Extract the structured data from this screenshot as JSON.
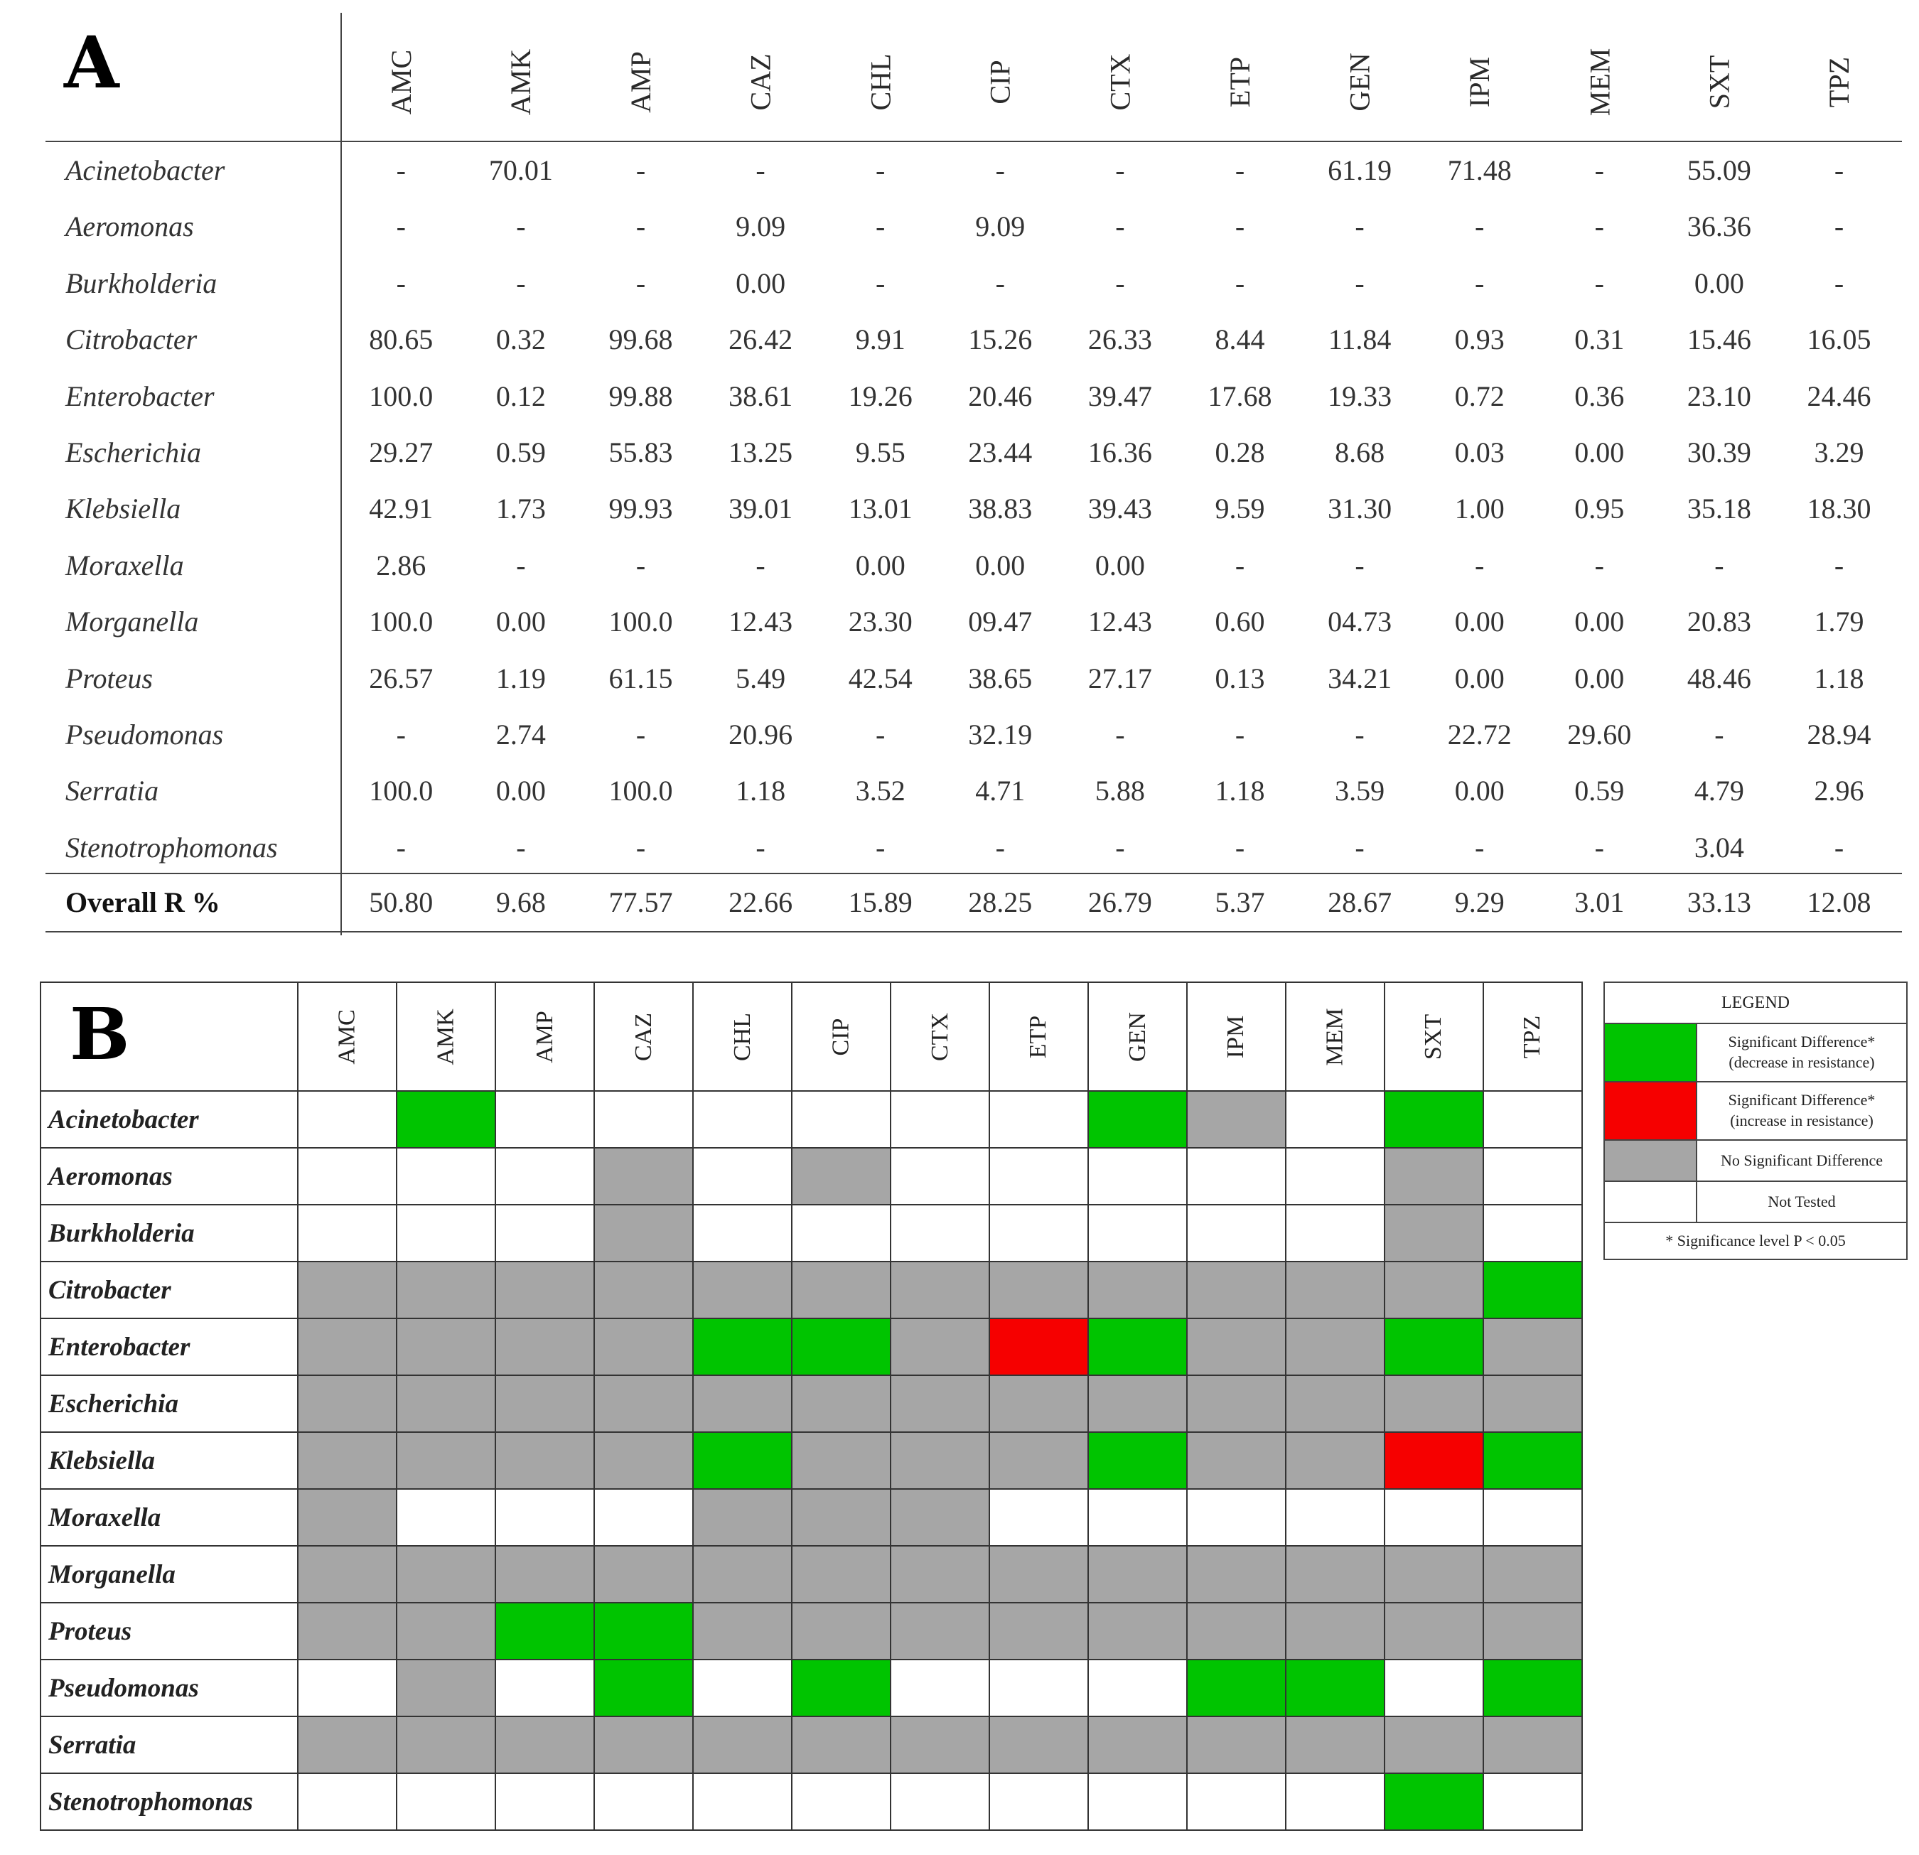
{
  "panel_a": {
    "label": "A",
    "columns": [
      "AMC",
      "AMK",
      "AMP",
      "CAZ",
      "CHL",
      "CIP",
      "CTX",
      "ETP",
      "GEN",
      "IPM",
      "MEM",
      "SXT",
      "TPZ"
    ],
    "rows": [
      {
        "organism": "Acinetobacter",
        "values": [
          "-",
          "70.01",
          "-",
          "-",
          "-",
          "-",
          "-",
          "-",
          "61.19",
          "71.48",
          "-",
          "55.09",
          "-"
        ]
      },
      {
        "organism": "Aeromonas",
        "values": [
          "-",
          "-",
          "-",
          "9.09",
          "-",
          "9.09",
          "-",
          "-",
          "-",
          "-",
          "-",
          "36.36",
          "-"
        ]
      },
      {
        "organism": "Burkholderia",
        "values": [
          "-",
          "-",
          "-",
          "0.00",
          "-",
          "-",
          "-",
          "-",
          "-",
          "-",
          "-",
          "0.00",
          "-"
        ]
      },
      {
        "organism": "Citrobacter",
        "values": [
          "80.65",
          "0.32",
          "99.68",
          "26.42",
          "9.91",
          "15.26",
          "26.33",
          "8.44",
          "11.84",
          "0.93",
          "0.31",
          "15.46",
          "16.05"
        ]
      },
      {
        "organism": "Enterobacter",
        "values": [
          "100.0",
          "0.12",
          "99.88",
          "38.61",
          "19.26",
          "20.46",
          "39.47",
          "17.68",
          "19.33",
          "0.72",
          "0.36",
          "23.10",
          "24.46"
        ]
      },
      {
        "organism": "Escherichia",
        "values": [
          "29.27",
          "0.59",
          "55.83",
          "13.25",
          "9.55",
          "23.44",
          "16.36",
          "0.28",
          "8.68",
          "0.03",
          "0.00",
          "30.39",
          "3.29"
        ]
      },
      {
        "organism": "Klebsiella",
        "values": [
          "42.91",
          "1.73",
          "99.93",
          "39.01",
          "13.01",
          "38.83",
          "39.43",
          "9.59",
          "31.30",
          "1.00",
          "0.95",
          "35.18",
          "18.30"
        ]
      },
      {
        "organism": "Moraxella",
        "values": [
          "2.86",
          "-",
          "-",
          "-",
          "0.00",
          "0.00",
          "0.00",
          "-",
          "-",
          "-",
          "-",
          "-",
          "-"
        ]
      },
      {
        "organism": "Morganella",
        "values": [
          "100.0",
          "0.00",
          "100.0",
          "12.43",
          "23.30",
          "09.47",
          "12.43",
          "0.60",
          "04.73",
          "0.00",
          "0.00",
          "20.83",
          "1.79"
        ]
      },
      {
        "organism": "Proteus",
        "values": [
          "26.57",
          "1.19",
          "61.15",
          "5.49",
          "42.54",
          "38.65",
          "27.17",
          "0.13",
          "34.21",
          "0.00",
          "0.00",
          "48.46",
          "1.18"
        ]
      },
      {
        "organism": "Pseudomonas",
        "values": [
          "-",
          "2.74",
          "-",
          "20.96",
          "-",
          "32.19",
          "-",
          "-",
          "-",
          "22.72",
          "29.60",
          "-",
          "28.94"
        ]
      },
      {
        "organism": "Serratia",
        "values": [
          "100.0",
          "0.00",
          "100.0",
          "1.18",
          "3.52",
          "4.71",
          "5.88",
          "1.18",
          "3.59",
          "0.00",
          "0.59",
          "4.79",
          "2.96"
        ]
      },
      {
        "organism": "Stenotrophomonas",
        "values": [
          "-",
          "-",
          "-",
          "-",
          "-",
          "-",
          "-",
          "-",
          "-",
          "-",
          "-",
          "3.04",
          "-"
        ]
      }
    ],
    "overall": {
      "label": "Overall R %",
      "values": [
        "50.80",
        "9.68",
        "77.57",
        "22.66",
        "15.89",
        "28.25",
        "26.79",
        "5.37",
        "28.67",
        "9.29",
        "3.01",
        "33.13",
        "12.08"
      ]
    }
  },
  "panel_b": {
    "label": "B",
    "columns": [
      "AMC",
      "AMK",
      "AMP",
      "CAZ",
      "CHL",
      "CIP",
      "CTX",
      "ETP",
      "GEN",
      "IPM",
      "MEM",
      "SXT",
      "TPZ"
    ],
    "status_colors": {
      "green": "#00c400",
      "red": "#f60000",
      "gray": "#a6a6a6",
      "white": "#ffffff"
    },
    "rows": [
      {
        "organism": "Acinetobacter",
        "status": [
          "white",
          "green",
          "white",
          "white",
          "white",
          "white",
          "white",
          "white",
          "green",
          "gray",
          "white",
          "green",
          "white"
        ]
      },
      {
        "organism": "Aeromonas",
        "status": [
          "white",
          "white",
          "white",
          "gray",
          "white",
          "gray",
          "white",
          "white",
          "white",
          "white",
          "white",
          "gray",
          "white"
        ]
      },
      {
        "organism": "Burkholderia",
        "status": [
          "white",
          "white",
          "white",
          "gray",
          "white",
          "white",
          "white",
          "white",
          "white",
          "white",
          "white",
          "gray",
          "white"
        ]
      },
      {
        "organism": "Citrobacter",
        "status": [
          "gray",
          "gray",
          "gray",
          "gray",
          "gray",
          "gray",
          "gray",
          "gray",
          "gray",
          "gray",
          "gray",
          "gray",
          "green"
        ]
      },
      {
        "organism": "Enterobacter",
        "status": [
          "gray",
          "gray",
          "gray",
          "gray",
          "green",
          "green",
          "gray",
          "red",
          "green",
          "gray",
          "gray",
          "green",
          "gray"
        ]
      },
      {
        "organism": "Escherichia",
        "status": [
          "gray",
          "gray",
          "gray",
          "gray",
          "gray",
          "gray",
          "gray",
          "gray",
          "gray",
          "gray",
          "gray",
          "gray",
          "gray"
        ]
      },
      {
        "organism": "Klebsiella",
        "status": [
          "gray",
          "gray",
          "gray",
          "gray",
          "green",
          "gray",
          "gray",
          "gray",
          "green",
          "gray",
          "gray",
          "red",
          "green"
        ]
      },
      {
        "organism": "Moraxella",
        "status": [
          "gray",
          "white",
          "white",
          "white",
          "gray",
          "gray",
          "gray",
          "white",
          "white",
          "white",
          "white",
          "white",
          "white"
        ]
      },
      {
        "organism": "Morganella",
        "status": [
          "gray",
          "gray",
          "gray",
          "gray",
          "gray",
          "gray",
          "gray",
          "gray",
          "gray",
          "gray",
          "gray",
          "gray",
          "gray"
        ]
      },
      {
        "organism": "Proteus",
        "status": [
          "gray",
          "gray",
          "green",
          "green",
          "gray",
          "gray",
          "gray",
          "gray",
          "gray",
          "gray",
          "gray",
          "gray",
          "gray"
        ]
      },
      {
        "organism": "Pseudomonas",
        "status": [
          "white",
          "gray",
          "white",
          "green",
          "white",
          "green",
          "white",
          "white",
          "white",
          "green",
          "green",
          "white",
          "green"
        ]
      },
      {
        "organism": "Serratia",
        "status": [
          "gray",
          "gray",
          "gray",
          "gray",
          "gray",
          "gray",
          "gray",
          "gray",
          "gray",
          "gray",
          "gray",
          "gray",
          "gray"
        ]
      },
      {
        "organism": "Stenotrophomonas",
        "status": [
          "white",
          "white",
          "white",
          "white",
          "white",
          "white",
          "white",
          "white",
          "white",
          "white",
          "white",
          "green",
          "white"
        ]
      }
    ]
  },
  "legend": {
    "title": "LEGEND",
    "items": [
      {
        "color": "green",
        "line1": "Significant Difference*",
        "line2": "(decrease in resistance)"
      },
      {
        "color": "red",
        "line1": "Significant Difference*",
        "line2": "(increase in resistance)"
      },
      {
        "color": "gray",
        "line1": "No Significant Difference",
        "line2": ""
      },
      {
        "color": "white",
        "line1": "Not Tested",
        "line2": ""
      }
    ],
    "note": "* Significance level P < 0.05"
  }
}
